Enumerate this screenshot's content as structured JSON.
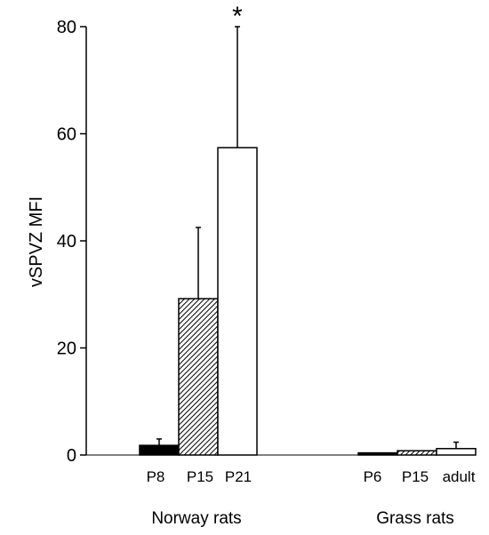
{
  "chart_data": {
    "type": "bar",
    "title": "",
    "ylabel": "vSPVZ MFI",
    "ylim": [
      0,
      80
    ],
    "yticks": [
      0,
      20,
      40,
      60,
      80
    ],
    "groups": [
      {
        "name": "Norway rats",
        "bars": [
          {
            "label": "P8",
            "value": 1.8,
            "error": 1.2,
            "fill": "solid"
          },
          {
            "label": "P15",
            "value": 29.2,
            "error": 13.3,
            "fill": "hatched"
          },
          {
            "label": "P21",
            "value": 57.4,
            "error": 22.6,
            "fill": "open",
            "annotation": "*"
          }
        ]
      },
      {
        "name": "Grass rats",
        "bars": [
          {
            "label": "P6",
            "value": 0.4,
            "error": 0,
            "fill": "solid"
          },
          {
            "label": "P15",
            "value": 0.8,
            "error": 0,
            "fill": "hatched"
          },
          {
            "label": "adult",
            "value": 1.2,
            "error": 1.2,
            "fill": "open"
          }
        ]
      }
    ],
    "grid": false,
    "legend": "none"
  }
}
